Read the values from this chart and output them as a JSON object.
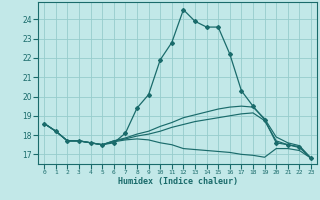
{
  "xlabel": "Humidex (Indice chaleur)",
  "bg_color": "#c2e8e8",
  "grid_color": "#96cccc",
  "line_color": "#1a6b6b",
  "xlim": [
    -0.5,
    23.5
  ],
  "ylim": [
    16.5,
    24.9
  ],
  "yticks": [
    17,
    18,
    19,
    20,
    21,
    22,
    23,
    24
  ],
  "xticks": [
    0,
    1,
    2,
    3,
    4,
    5,
    6,
    7,
    8,
    9,
    10,
    11,
    12,
    13,
    14,
    15,
    16,
    17,
    18,
    19,
    20,
    21,
    22,
    23
  ],
  "series": [
    {
      "x": [
        0,
        1,
        2,
        3,
        4,
        5,
        6,
        7,
        8,
        9,
        10,
        11,
        12,
        13,
        14,
        15,
        16,
        17,
        18,
        19,
        20,
        21,
        22,
        23
      ],
      "y": [
        18.6,
        18.2,
        17.7,
        17.7,
        17.6,
        17.5,
        17.6,
        18.1,
        19.4,
        20.1,
        21.9,
        22.8,
        24.5,
        23.9,
        23.6,
        23.6,
        22.2,
        20.3,
        19.5,
        18.8,
        17.6,
        17.5,
        17.4,
        16.8
      ],
      "marker": true
    },
    {
      "x": [
        0,
        1,
        2,
        3,
        4,
        5,
        6,
        7,
        8,
        9,
        10,
        11,
        12,
        13,
        14,
        15,
        16,
        17,
        18,
        19,
        20,
        21,
        22,
        23
      ],
      "y": [
        18.6,
        18.2,
        17.7,
        17.7,
        17.6,
        17.5,
        17.7,
        17.85,
        18.05,
        18.2,
        18.45,
        18.65,
        18.9,
        19.05,
        19.2,
        19.35,
        19.45,
        19.5,
        19.45,
        18.85,
        17.9,
        17.6,
        17.45,
        16.8
      ],
      "marker": false
    },
    {
      "x": [
        0,
        1,
        2,
        3,
        4,
        5,
        6,
        7,
        8,
        9,
        10,
        11,
        12,
        13,
        14,
        15,
        16,
        17,
        18,
        19,
        20,
        21,
        22,
        23
      ],
      "y": [
        18.6,
        18.2,
        17.7,
        17.7,
        17.6,
        17.5,
        17.65,
        17.75,
        17.8,
        17.75,
        17.6,
        17.5,
        17.3,
        17.25,
        17.2,
        17.15,
        17.1,
        17.0,
        16.95,
        16.85,
        17.3,
        17.3,
        17.2,
        16.8
      ],
      "marker": false
    },
    {
      "x": [
        0,
        1,
        2,
        3,
        4,
        5,
        6,
        7,
        8,
        9,
        10,
        11,
        12,
        13,
        14,
        15,
        16,
        17,
        18,
        19,
        20,
        21,
        22,
        23
      ],
      "y": [
        18.6,
        18.2,
        17.7,
        17.7,
        17.6,
        17.5,
        17.7,
        17.8,
        17.95,
        18.05,
        18.2,
        18.4,
        18.55,
        18.7,
        18.8,
        18.9,
        19.0,
        19.1,
        19.15,
        18.75,
        17.7,
        17.5,
        17.35,
        16.8
      ],
      "marker": false
    }
  ]
}
